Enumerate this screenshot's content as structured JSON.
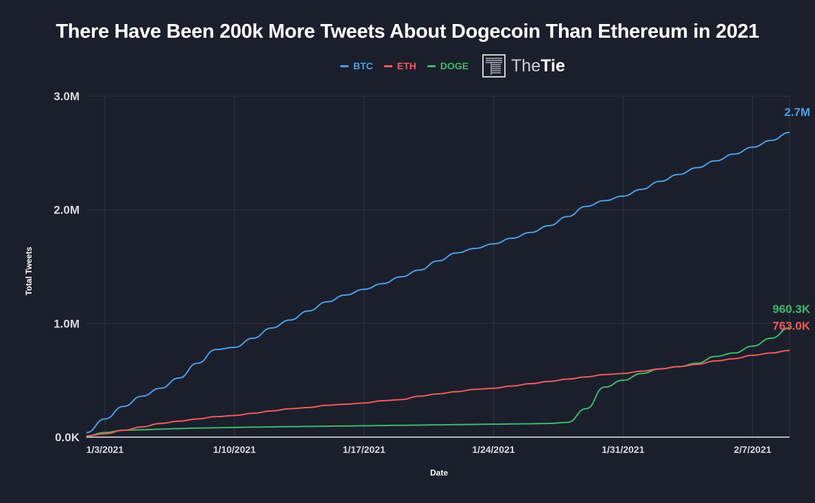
{
  "chart_data": {
    "type": "line",
    "title": "There Have Been 200k More Tweets About Dogecoin Than Ethereum in 2021",
    "xlabel": "Date",
    "ylabel": "Total Tweets",
    "x": [
      "1/2/2021",
      "1/3/2021",
      "1/4/2021",
      "1/5/2021",
      "1/6/2021",
      "1/7/2021",
      "1/8/2021",
      "1/9/2021",
      "1/10/2021",
      "1/11/2021",
      "1/12/2021",
      "1/13/2021",
      "1/14/2021",
      "1/15/2021",
      "1/16/2021",
      "1/17/2021",
      "1/18/2021",
      "1/19/2021",
      "1/20/2021",
      "1/21/2021",
      "1/22/2021",
      "1/23/2021",
      "1/24/2021",
      "1/25/2021",
      "1/26/2021",
      "1/27/2021",
      "1/28/2021",
      "1/29/2021",
      "1/30/2021",
      "1/31/2021",
      "2/1/2021",
      "2/2/2021",
      "2/3/2021",
      "2/4/2021",
      "2/5/2021",
      "2/6/2021",
      "2/7/2021",
      "2/8/2021",
      "2/9/2021"
    ],
    "x_ticks": [
      "1/3/2021",
      "1/10/2021",
      "1/17/2021",
      "1/24/2021",
      "1/31/2021",
      "2/7/2021"
    ],
    "y_ticks": [
      "0.0K",
      "1.0M",
      "2.0M",
      "3.0M"
    ],
    "ylim": [
      0,
      3000000
    ],
    "grid": true,
    "legend": "top-center",
    "series": [
      {
        "name": "BTC",
        "color": "#4a9fe8",
        "end_label": "2.7M",
        "values": [
          40000,
          160000,
          270000,
          360000,
          430000,
          520000,
          650000,
          770000,
          790000,
          870000,
          960000,
          1030000,
          1110000,
          1190000,
          1250000,
          1300000,
          1350000,
          1410000,
          1470000,
          1550000,
          1620000,
          1660000,
          1700000,
          1750000,
          1800000,
          1860000,
          1940000,
          2030000,
          2080000,
          2120000,
          2180000,
          2250000,
          2310000,
          2370000,
          2430000,
          2490000,
          2550000,
          2610000,
          2680000
        ]
      },
      {
        "name": "ETH",
        "color": "#ef5b5b",
        "end_label": "763.0K",
        "values": [
          10000,
          30000,
          60000,
          90000,
          120000,
          140000,
          160000,
          180000,
          190000,
          210000,
          230000,
          250000,
          260000,
          280000,
          290000,
          300000,
          320000,
          330000,
          360000,
          380000,
          400000,
          420000,
          430000,
          450000,
          470000,
          490000,
          510000,
          530000,
          550000,
          560000,
          580000,
          600000,
          620000,
          640000,
          670000,
          690000,
          720000,
          740000,
          763000
        ]
      },
      {
        "name": "DOGE",
        "color": "#3fb86d",
        "end_label": "960.3K",
        "values": [
          10000,
          40000,
          60000,
          65000,
          70000,
          75000,
          80000,
          82000,
          85000,
          88000,
          90000,
          92000,
          94000,
          96000,
          98000,
          100000,
          102000,
          104000,
          106000,
          108000,
          110000,
          112000,
          114000,
          116000,
          118000,
          120000,
          130000,
          250000,
          440000,
          500000,
          560000,
          600000,
          620000,
          650000,
          710000,
          740000,
          800000,
          870000,
          960300
        ]
      }
    ]
  },
  "legend_items": [
    "BTC",
    "ETH",
    "DOGE"
  ],
  "logo": {
    "text_light": "The",
    "text_bold": "Tie"
  }
}
